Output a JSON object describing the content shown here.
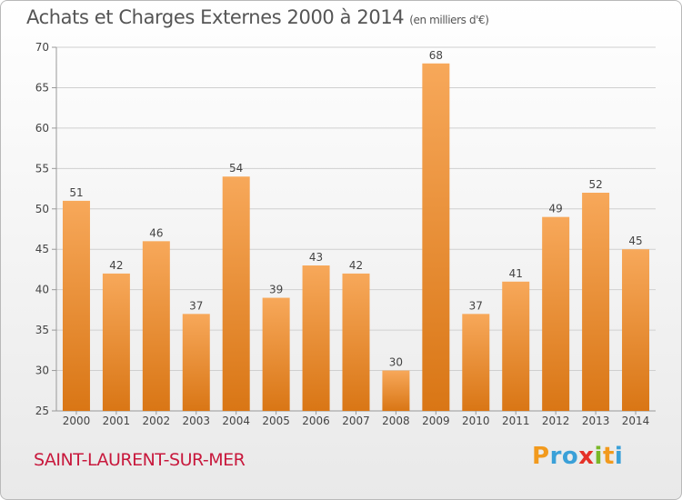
{
  "title": "Achats et Charges Externes 2000 à 2014",
  "unit": "(en milliers d'€)",
  "commune": "SAINT-LAURENT-SUR-MER",
  "logo": {
    "letters": [
      "P",
      "r",
      "o",
      "x",
      "i",
      "t",
      "i"
    ],
    "colors": [
      "#f29a1d",
      "#3aa0d8",
      "#3aa0d8",
      "#e53127",
      "#7ab828",
      "#f29a1d",
      "#3aa0d8"
    ]
  },
  "colors": {
    "bar_top": "#f7a85a",
    "bar_bottom": "#d97615",
    "title": "#555555",
    "commune": "#c8193d"
  },
  "chart_data": {
    "type": "bar",
    "title": "Achats et Charges Externes 2000 à 2014",
    "subtitle": "(en milliers d'€)",
    "categories": [
      "2000",
      "2001",
      "2002",
      "2003",
      "2004",
      "2005",
      "2006",
      "2007",
      "2008",
      "2009",
      "2010",
      "2011",
      "2012",
      "2013",
      "2014"
    ],
    "values": [
      51,
      42,
      46,
      37,
      54,
      39,
      43,
      42,
      30,
      68,
      37,
      41,
      49,
      52,
      45
    ],
    "ylim": [
      25,
      70
    ],
    "yticks": [
      25,
      30,
      35,
      40,
      45,
      50,
      55,
      60,
      65,
      70
    ],
    "grid": true,
    "data_labels": true
  }
}
